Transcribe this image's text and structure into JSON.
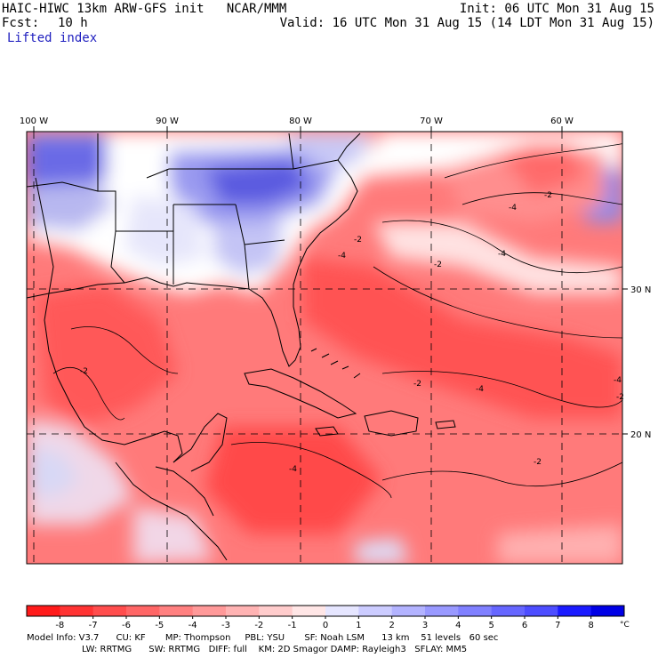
{
  "header": {
    "title_left": "HAIC-HIWC 13km ARW-GFS init   NCAR/MMM",
    "init": "Init: 06 UTC Mon 31 Aug 15",
    "fcst_label": "Fcst:",
    "fcst_value": "10 h",
    "valid": "Valid: 16 UTC Mon 31 Aug 15 (14 LDT Mon 31 Aug 15)",
    "field": "Lifted index"
  },
  "map": {
    "lon_labels": [
      "100 W",
      "90 W",
      "80 W",
      "70 W",
      "60 W"
    ],
    "lat_labels": [
      "30 N",
      "20 N"
    ],
    "contour_labels": [
      "-2",
      "-4",
      "-2",
      "-4",
      "-2",
      "-4",
      "-2",
      "-4",
      "-2",
      "-4",
      "-2",
      "-4",
      "-2"
    ],
    "colors": {
      "border": "#000000",
      "grid": "#000000"
    }
  },
  "colorbar": {
    "ticks": [
      "-8",
      "-7",
      "-6",
      "-5",
      "-4",
      "-3",
      "-2",
      "-1",
      "0",
      "1",
      "2",
      "3",
      "4",
      "5",
      "6",
      "7",
      "8"
    ],
    "unit": "°C",
    "colors": [
      "#ff1a1a",
      "#ff3333",
      "#ff4d4d",
      "#ff6666",
      "#ff8080",
      "#ff9999",
      "#ffb3b3",
      "#ffcccc",
      "#ffe6e6",
      "#e6e6ff",
      "#ccccff",
      "#b3b3ff",
      "#9999ff",
      "#8080ff",
      "#6666ff",
      "#4d4dff",
      "#1a1aff",
      "#0000e6"
    ]
  },
  "footer": {
    "line1": "Model Info: V3.7      CU: KF       MP: Thompson     PBL: YSU       SF: Noah LSM      13 km    51 levels   60 sec",
    "line2": "LW: RRTMG      SW: RRTMG   DIFF: full    KM: 2D Smagor DAMP: Rayleigh3   SFLAY: MM5"
  }
}
